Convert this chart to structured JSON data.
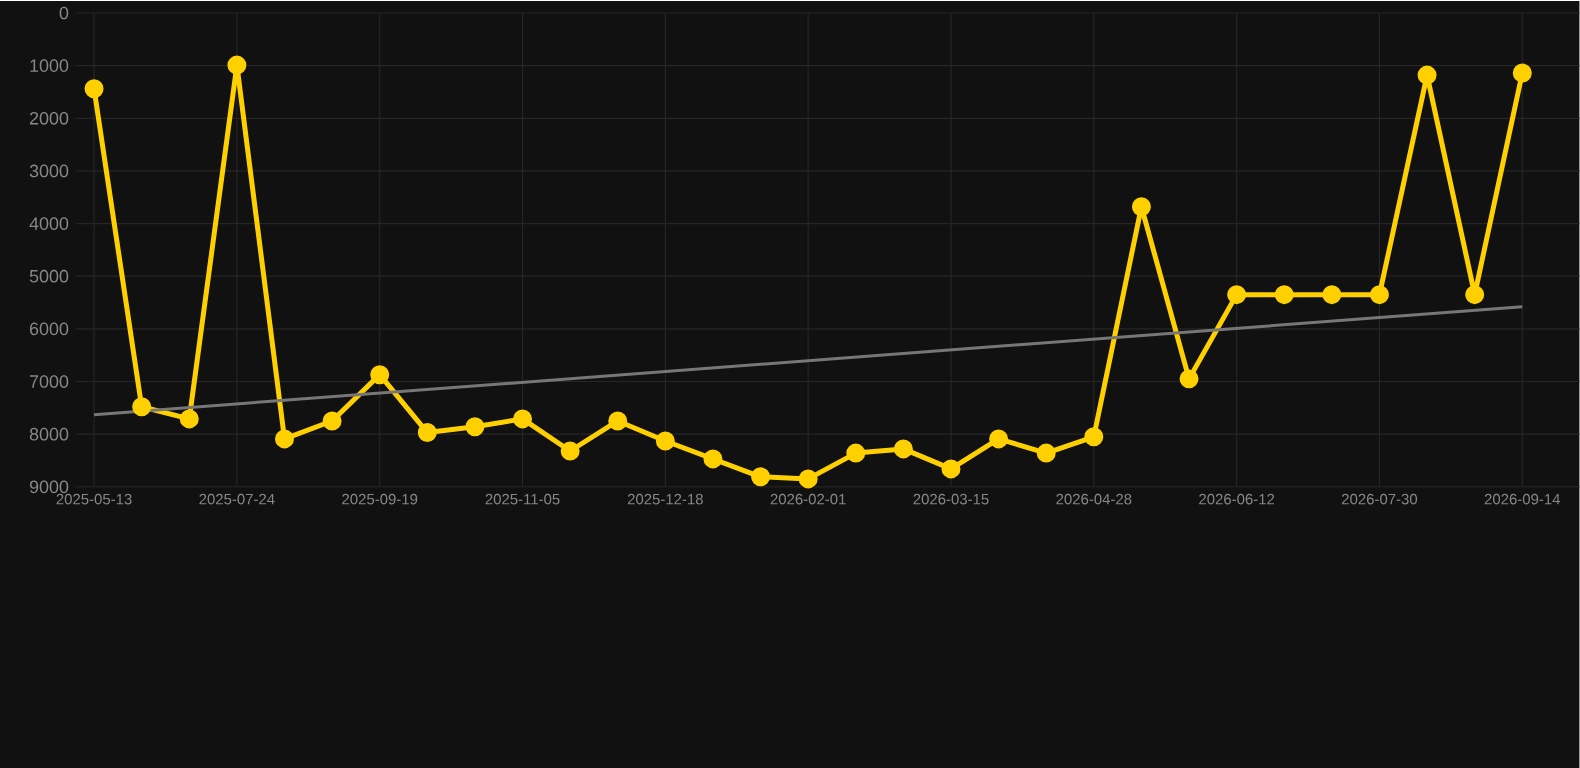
{
  "chart_data": {
    "type": "line",
    "categories": [
      "2025-05-13",
      null,
      null,
      "2025-07-24",
      null,
      null,
      "2025-09-19",
      null,
      null,
      "2025-11-05",
      null,
      null,
      "2025-12-18",
      null,
      null,
      "2026-02-01",
      null,
      null,
      "2026-03-15",
      null,
      null,
      "2026-04-28",
      null,
      null,
      "2026-06-12",
      null,
      null,
      "2026-07-30",
      null,
      null,
      "2026-09-14"
    ],
    "series": [
      {
        "color": "#ffd000",
        "values": [
          1440,
          7480,
          7710,
          990,
          8090,
          7750,
          6870,
          7970,
          7860,
          7710,
          8320,
          7750,
          8130,
          8470,
          8810,
          8850,
          8360,
          8280,
          8660,
          8090,
          8360,
          8050,
          3680,
          6950,
          5350,
          5350,
          5350,
          5350,
          1180,
          5350,
          1140
        ]
      },
      {
        "type": "line",
        "color": "#777777",
        "marker": "none",
        "values": [
          7630,
          null,
          null,
          null,
          null,
          null,
          null,
          null,
          null,
          null,
          null,
          null,
          null,
          null,
          null,
          null,
          null,
          null,
          null,
          null,
          null,
          null,
          null,
          null,
          null,
          null,
          null,
          null,
          null,
          null,
          5580
        ]
      }
    ],
    "ylim": [
      9000,
      0
    ],
    "yticks": [
      0,
      1000,
      2000,
      3000,
      4000,
      5000,
      6000,
      7000,
      8000,
      9000
    ],
    "grid": true,
    "marker": "circle",
    "line_style": "solid"
  }
}
